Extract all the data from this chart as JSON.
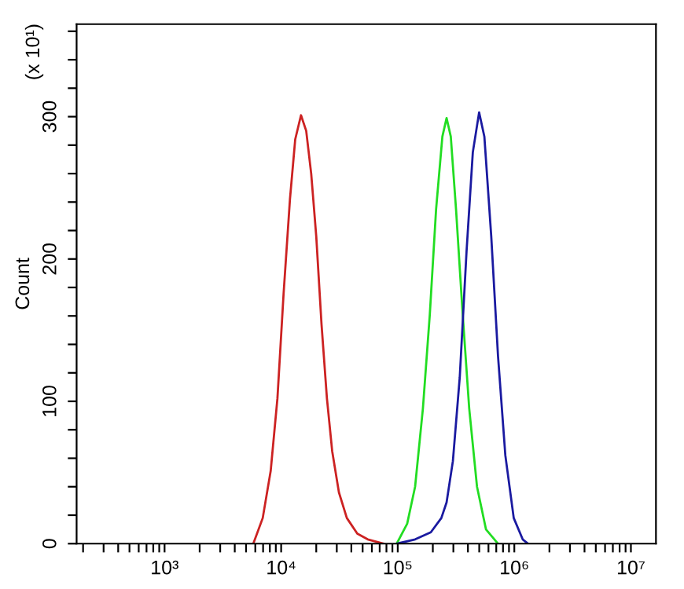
{
  "chart_data": {
    "type": "line",
    "ylabel": "Count",
    "annotations": [
      "(x 10¹)"
    ],
    "log": "x",
    "grid": false,
    "legend": false,
    "marker": "none",
    "line_style": "solid",
    "xlim": [
      176,
      16400000
    ],
    "ylim": [
      0,
      365
    ],
    "xticks": [
      {
        "value": 200,
        "label": null
      },
      {
        "value": 300,
        "label": null
      },
      {
        "value": 400,
        "label": null
      },
      {
        "value": 500,
        "label": null
      },
      {
        "value": 600,
        "label": null
      },
      {
        "value": 700,
        "label": null
      },
      {
        "value": 800,
        "label": null
      },
      {
        "value": 900,
        "label": null
      },
      {
        "value": 1000,
        "label": "10³"
      },
      {
        "value": 2000,
        "label": null
      },
      {
        "value": 3000,
        "label": null
      },
      {
        "value": 4000,
        "label": null
      },
      {
        "value": 5000,
        "label": null
      },
      {
        "value": 6000,
        "label": null
      },
      {
        "value": 7000,
        "label": null
      },
      {
        "value": 8000,
        "label": null
      },
      {
        "value": 9000,
        "label": null
      },
      {
        "value": 10000,
        "label": "10⁴"
      },
      {
        "value": 20000,
        "label": null
      },
      {
        "value": 30000,
        "label": null
      },
      {
        "value": 40000,
        "label": null
      },
      {
        "value": 50000,
        "label": null
      },
      {
        "value": 60000,
        "label": null
      },
      {
        "value": 70000,
        "label": null
      },
      {
        "value": 80000,
        "label": null
      },
      {
        "value": 90000,
        "label": null
      },
      {
        "value": 100000,
        "label": "10⁵"
      },
      {
        "value": 200000,
        "label": null
      },
      {
        "value": 300000,
        "label": null
      },
      {
        "value": 400000,
        "label": null
      },
      {
        "value": 500000,
        "label": null
      },
      {
        "value": 600000,
        "label": null
      },
      {
        "value": 700000,
        "label": null
      },
      {
        "value": 800000,
        "label": null
      },
      {
        "value": 900000,
        "label": null
      },
      {
        "value": 1000000,
        "label": "10⁶"
      },
      {
        "value": 2000000,
        "label": null
      },
      {
        "value": 3000000,
        "label": null
      },
      {
        "value": 4000000,
        "label": null
      },
      {
        "value": 5000000,
        "label": null
      },
      {
        "value": 6000000,
        "label": null
      },
      {
        "value": 7000000,
        "label": null
      },
      {
        "value": 8000000,
        "label": null
      },
      {
        "value": 9000000,
        "label": null
      },
      {
        "value": 10000000,
        "label": "10⁷"
      }
    ],
    "yticks": [
      0,
      {
        "value": 20,
        "label": null
      },
      {
        "value": 40,
        "label": null
      },
      {
        "value": 60,
        "label": null
      },
      {
        "value": 80,
        "label": null
      },
      100,
      {
        "value": 120,
        "label": null
      },
      {
        "value": 140,
        "label": null
      },
      {
        "value": 160,
        "label": null
      },
      {
        "value": 180,
        "label": null
      },
      200,
      {
        "value": 220,
        "label": null
      },
      {
        "value": 240,
        "label": null
      },
      {
        "value": 260,
        "label": null
      },
      {
        "value": 280,
        "label": null
      },
      300,
      {
        "value": 320,
        "label": null
      },
      {
        "value": 340,
        "label": null
      },
      {
        "value": 360,
        "label": null
      }
    ],
    "series": [
      {
        "color": "#cc2222",
        "x": [
          5770,
          6950,
          8130,
          9290,
          10500,
          11900,
          13200,
          14800,
          16400,
          18100,
          20000,
          22200,
          24700,
          27400,
          31300,
          36600,
          45000,
          55300,
          75500
        ],
        "values": [
          0,
          18,
          51,
          102,
          176,
          242,
          284,
          301,
          290,
          260,
          216,
          154,
          102,
          65,
          36,
          18,
          7,
          3,
          0
        ]
      },
      {
        "color": "#22dd22",
        "x": [
          98000,
          120500,
          140900,
          164400,
          188400,
          213300,
          241500,
          262400,
          285100,
          316200,
          358100,
          410200,
          478600,
          571500,
          724400
        ],
        "values": [
          0,
          14,
          40,
          95,
          161,
          235,
          286,
          299,
          286,
          235,
          165,
          95,
          40,
          10,
          0
        ]
      },
      {
        "color": "#1a1aa0",
        "x": [
          98000,
          141000,
          192300,
          236600,
          262400,
          297200,
          340400,
          389000,
          440600,
          498900,
          553400,
          633900,
          724400,
          837500,
          988600,
          1180000,
          1309000
        ],
        "values": [
          0,
          3,
          8,
          18,
          29,
          58,
          117,
          205,
          275,
          303,
          286,
          216,
          132,
          62,
          18,
          3,
          0
        ]
      }
    ]
  }
}
